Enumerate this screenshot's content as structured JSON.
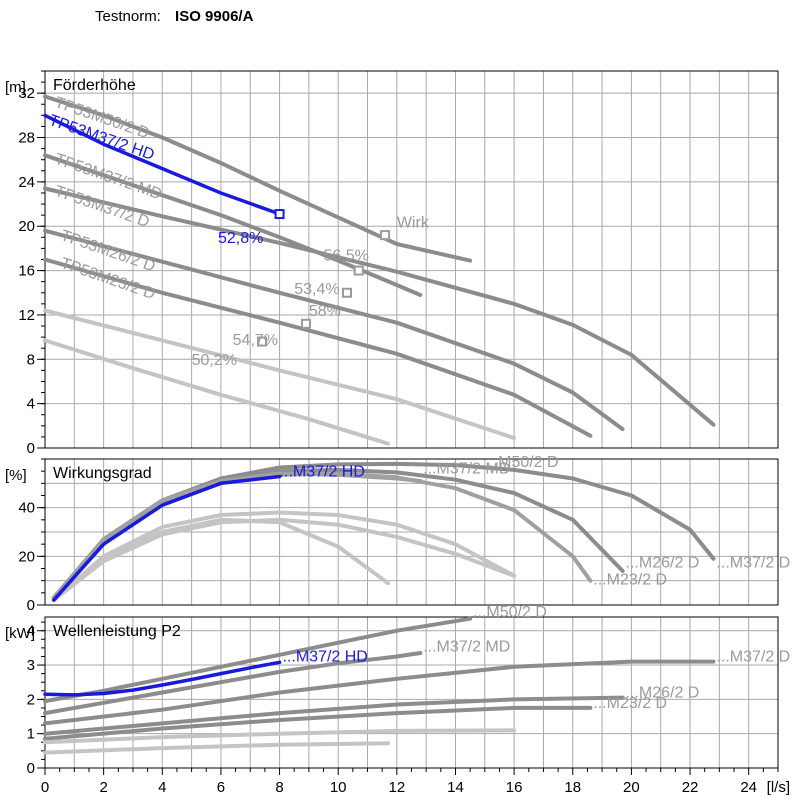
{
  "header": {
    "label": "Testnorm:",
    "value": "ISO 9906/A"
  },
  "colors": {
    "highlight": "#1a1adc",
    "grey_dark": "#8c8c8c",
    "grey_mid": "#a0a0a0",
    "grey_light": "#c4c4c4",
    "label_grey": "#9a9a9a"
  },
  "chart_data": [
    {
      "type": "line",
      "title": "Förderhöhe",
      "ylabel": "[m]",
      "xlim": [
        0,
        25
      ],
      "ylim": [
        0,
        34
      ],
      "yticks": [
        0,
        4,
        8,
        12,
        16,
        20,
        24,
        28,
        32
      ],
      "series": [
        {
          "name": "TP53M50/2 D",
          "color": "#8c8c8c",
          "highlight": false,
          "x": [
            0,
            2,
            4,
            6,
            8,
            10,
            12,
            14.5
          ],
          "y": [
            31.7,
            30.0,
            28.0,
            25.7,
            23.2,
            20.8,
            18.4,
            16.9
          ]
        },
        {
          "name": "TP53M37/2 HD",
          "color": "#1a1adc",
          "highlight": true,
          "x": [
            0,
            2,
            4,
            6,
            8
          ],
          "y": [
            30.0,
            27.4,
            25.2,
            23.0,
            21.1
          ]
        },
        {
          "name": "TP53M37/2 MD",
          "color": "#8c8c8c",
          "highlight": false,
          "x": [
            0,
            2,
            4,
            6,
            8,
            10,
            12,
            12.8
          ],
          "y": [
            26.4,
            24.6,
            22.8,
            21.0,
            19.0,
            16.9,
            14.7,
            13.8
          ]
        },
        {
          "name": "TP53M37/2 D",
          "color": "#8c8c8c",
          "highlight": false,
          "x": [
            0,
            4,
            8,
            12,
            16,
            18,
            20,
            22.8
          ],
          "y": [
            23.4,
            20.9,
            18.5,
            15.9,
            13.0,
            11.1,
            8.4,
            2.1
          ]
        },
        {
          "name": "TP53M26/2 D",
          "color": "#8c8c8c",
          "highlight": false,
          "x": [
            0,
            4,
            8,
            12,
            16,
            18,
            19.7
          ],
          "y": [
            19.6,
            16.8,
            14.0,
            11.3,
            7.6,
            5.0,
            1.7
          ]
        },
        {
          "name": "TP53M23/2 D",
          "color": "#8c8c8c",
          "highlight": false,
          "x": [
            0,
            4,
            8,
            12,
            16,
            18.6
          ],
          "y": [
            17.0,
            14.0,
            11.3,
            8.5,
            4.8,
            1.1
          ]
        },
        {
          "name": "",
          "color": "#c4c4c4",
          "highlight": false,
          "x": [
            0,
            4,
            8,
            12,
            16
          ],
          "y": [
            12.4,
            9.7,
            7.0,
            4.4,
            0.9
          ]
        },
        {
          "name": "",
          "color": "#c4c4c4",
          "highlight": false,
          "x": [
            0,
            3,
            6,
            9,
            11.7
          ],
          "y": [
            9.7,
            7.2,
            4.8,
            2.6,
            0.4
          ]
        }
      ],
      "points": [
        {
          "x": 8,
          "y": 21.1,
          "color": "#1a1adc"
        },
        {
          "x": 11.6,
          "y": 19.2,
          "color": "#9a9a9a"
        },
        {
          "x": 10.7,
          "y": 16.0,
          "color": "#9a9a9a"
        },
        {
          "x": 10.3,
          "y": 14.0,
          "color": "#9a9a9a"
        },
        {
          "x": 8.9,
          "y": 11.2,
          "color": "#9a9a9a"
        },
        {
          "x": 7.4,
          "y": 9.6,
          "color": "#9a9a9a"
        }
      ],
      "annotations": [
        {
          "text": "TP53M50/2 D",
          "x": 0.3,
          "y": 30.8,
          "angle": 19,
          "color": "#9a9a9a"
        },
        {
          "text": "TP53M37/2 HD",
          "x": 0.1,
          "y": 29.2,
          "angle": 19,
          "color": "#1a1adc"
        },
        {
          "text": "TP53M37/2 MD",
          "x": 0.3,
          "y": 25.7,
          "angle": 19,
          "color": "#9a9a9a"
        },
        {
          "text": "TP53M37/2 D",
          "x": 0.3,
          "y": 22.8,
          "angle": 19,
          "color": "#9a9a9a"
        },
        {
          "text": "TP53M26/2 D",
          "x": 0.5,
          "y": 18.8,
          "angle": 19,
          "color": "#9a9a9a"
        },
        {
          "text": "TP53M23/2 D",
          "x": 0.5,
          "y": 16.3,
          "angle": 19,
          "color": "#9a9a9a"
        },
        {
          "text": "52,8%",
          "x": 5.9,
          "y": 18.5,
          "angle": 0,
          "color": "#1a1adc"
        },
        {
          "text": "Wirk",
          "x": 12.0,
          "y": 19.9,
          "angle": 0,
          "color": "#9a9a9a"
        },
        {
          "text": "56,5%",
          "x": 9.5,
          "y": 16.9,
          "angle": 0,
          "color": "#9a9a9a"
        },
        {
          "text": "53,4%",
          "x": 8.5,
          "y": 13.9,
          "angle": 0,
          "color": "#9a9a9a"
        },
        {
          "text": "58%",
          "x": 9.0,
          "y": 11.9,
          "angle": 0,
          "color": "#9a9a9a"
        },
        {
          "text": "54,7%",
          "x": 6.4,
          "y": 9.3,
          "angle": 0,
          "color": "#9a9a9a"
        },
        {
          "text": "50,2%",
          "x": 5.0,
          "y": 7.5,
          "angle": 0,
          "color": "#9a9a9a"
        }
      ]
    },
    {
      "type": "line",
      "title": "Wirkungsgrad",
      "ylabel": "[%]",
      "xlim": [
        0,
        25
      ],
      "ylim": [
        0,
        60
      ],
      "yticks": [
        0,
        20,
        40
      ],
      "series": [
        {
          "name": "M50/2 D",
          "color": "#8c8c8c",
          "highlight": false,
          "x": [
            0.3,
            2,
            4,
            6,
            8,
            10,
            12,
            14,
            16,
            18,
            20,
            22,
            22.8
          ],
          "y": [
            3,
            27,
            43,
            52,
            56.5,
            57.8,
            58,
            57.5,
            55.5,
            52,
            45,
            31,
            19
          ]
        },
        {
          "name": "M37/2 MD",
          "color": "#8c8c8c",
          "highlight": false,
          "x": [
            0.3,
            2,
            4,
            6,
            8,
            10,
            12,
            14,
            16,
            18,
            19.7
          ],
          "y": [
            3,
            27,
            43,
            51.5,
            55,
            55.5,
            54.5,
            51.5,
            46,
            35,
            14
          ]
        },
        {
          "name": "M37/2 D",
          "color": "#a0a0a0",
          "highlight": false,
          "x": [
            0.3,
            2,
            4,
            6,
            8,
            10,
            12,
            14,
            16,
            18,
            18.6
          ],
          "y": [
            3,
            26,
            42,
            50,
            53.5,
            54,
            52.5,
            48,
            39,
            20,
            10
          ]
        },
        {
          "name": "M26/2 D",
          "color": "#a0a0a0",
          "highlight": false,
          "x": [
            0.3,
            2,
            4,
            6,
            8,
            10,
            12,
            12.8
          ],
          "y": [
            3,
            27,
            43,
            51,
            54,
            53.5,
            52,
            51
          ]
        },
        {
          "name": "M37/2 HD",
          "color": "#1a1adc",
          "highlight": true,
          "x": [
            0.3,
            2,
            4,
            6,
            8
          ],
          "y": [
            2,
            25,
            41,
            50,
            52.8
          ]
        },
        {
          "name": "M23/2 D",
          "color": "#c4c4c4",
          "highlight": false,
          "x": [
            0.3,
            2,
            4,
            6,
            8,
            10,
            12,
            14,
            16
          ],
          "y": [
            2,
            20,
            32,
            37,
            38,
            37,
            33,
            25,
            12
          ]
        },
        {
          "name": "",
          "color": "#c4c4c4",
          "highlight": false,
          "x": [
            0.3,
            2,
            4,
            6,
            8,
            10,
            11.7
          ],
          "y": [
            2,
            19,
            30,
            35,
            34,
            24,
            9
          ]
        },
        {
          "name": "",
          "color": "#c4c4c4",
          "highlight": false,
          "x": [
            0.3,
            2,
            4,
            6,
            8,
            10,
            12,
            14,
            16
          ],
          "y": [
            2,
            18,
            29,
            34,
            35,
            33,
            28,
            21,
            12
          ]
        }
      ],
      "annotations": [
        {
          "text": "...M37/2 HD",
          "x": 8.0,
          "y": 52.8,
          "angle": 0,
          "color": "#1a1adc"
        },
        {
          "text": "...M50/2 D",
          "x": 15.0,
          "y": 56.8,
          "angle": 0,
          "color": "#9a9a9a"
        },
        {
          "text": "...M37/2 MD",
          "x": 12.9,
          "y": 54.0,
          "angle": 0,
          "color": "#9a9a9a"
        },
        {
          "text": "...M26/2 D",
          "x": 19.8,
          "y": 15.5,
          "angle": 0,
          "color": "#9a9a9a"
        },
        {
          "text": "...M37/2 D",
          "x": 22.9,
          "y": 15.5,
          "angle": 0,
          "color": "#9a9a9a"
        },
        {
          "text": "...M23/2 D",
          "x": 18.7,
          "y": 8.5,
          "angle": 0,
          "color": "#9a9a9a"
        }
      ]
    },
    {
      "type": "line",
      "title": "Wellenleistung P2",
      "ylabel": "[kW]",
      "xlabel": "[l/s]",
      "xlim": [
        0,
        25
      ],
      "ylim": [
        0,
        4.4
      ],
      "xticks": [
        0,
        2,
        4,
        6,
        8,
        10,
        12,
        14,
        16,
        18,
        20,
        22,
        24
      ],
      "yticks": [
        0,
        1,
        2,
        3,
        4
      ],
      "series": [
        {
          "name": "M50/2 D",
          "color": "#8c8c8c",
          "highlight": false,
          "x": [
            0,
            2,
            4,
            6,
            8,
            10,
            12,
            14.5
          ],
          "y": [
            1.95,
            2.25,
            2.6,
            2.95,
            3.3,
            3.65,
            4.0,
            4.35
          ]
        },
        {
          "name": "M37/2 MD",
          "color": "#8c8c8c",
          "highlight": false,
          "x": [
            0,
            2,
            4,
            6,
            8,
            10,
            12,
            12.8
          ],
          "y": [
            1.6,
            1.9,
            2.2,
            2.5,
            2.8,
            3.05,
            3.25,
            3.35
          ]
        },
        {
          "name": "M37/2 D",
          "color": "#8c8c8c",
          "highlight": false,
          "x": [
            0,
            4,
            8,
            12,
            16,
            20,
            22.8
          ],
          "y": [
            1.3,
            1.7,
            2.2,
            2.6,
            2.95,
            3.1,
            3.1
          ]
        },
        {
          "name": "M37/2 HD",
          "color": "#1a1adc",
          "highlight": true,
          "x": [
            0,
            1,
            2,
            3,
            4,
            5,
            6,
            7,
            8
          ],
          "y": [
            2.15,
            2.13,
            2.17,
            2.27,
            2.42,
            2.58,
            2.75,
            2.92,
            3.08
          ]
        },
        {
          "name": "M26/2 D",
          "color": "#8c8c8c",
          "highlight": false,
          "x": [
            0,
            4,
            8,
            12,
            16,
            19.7
          ],
          "y": [
            1.0,
            1.3,
            1.6,
            1.85,
            2.0,
            2.05
          ]
        },
        {
          "name": "M23/2 D",
          "color": "#8c8c8c",
          "highlight": false,
          "x": [
            0,
            4,
            8,
            12,
            16,
            18.6
          ],
          "y": [
            0.85,
            1.15,
            1.4,
            1.6,
            1.75,
            1.75
          ]
        },
        {
          "name": "",
          "color": "#c4c4c4",
          "highlight": false,
          "x": [
            0,
            4,
            8,
            12,
            16
          ],
          "y": [
            0.75,
            0.9,
            1.0,
            1.08,
            1.1
          ]
        },
        {
          "name": "",
          "color": "#c4c4c4",
          "highlight": false,
          "x": [
            0,
            4,
            8,
            11.7
          ],
          "y": [
            0.45,
            0.58,
            0.68,
            0.72
          ]
        }
      ],
      "annotations": [
        {
          "text": "...M50/2 D",
          "x": 14.6,
          "y": 4.4,
          "angle": 0,
          "color": "#9a9a9a"
        },
        {
          "text": "...M37/2 HD",
          "x": 8.1,
          "y": 3.1,
          "angle": 0,
          "color": "#1a1adc"
        },
        {
          "text": "...M37/2 MD",
          "x": 12.9,
          "y": 3.4,
          "angle": 0,
          "color": "#9a9a9a"
        },
        {
          "text": "...M37/2 D",
          "x": 22.9,
          "y": 3.1,
          "angle": 0,
          "color": "#9a9a9a"
        },
        {
          "text": "...M26/2 D",
          "x": 19.8,
          "y": 2.05,
          "angle": 0,
          "color": "#9a9a9a"
        },
        {
          "text": "...M23/2 D",
          "x": 18.7,
          "y": 1.75,
          "angle": 0,
          "color": "#9a9a9a"
        }
      ]
    }
  ]
}
